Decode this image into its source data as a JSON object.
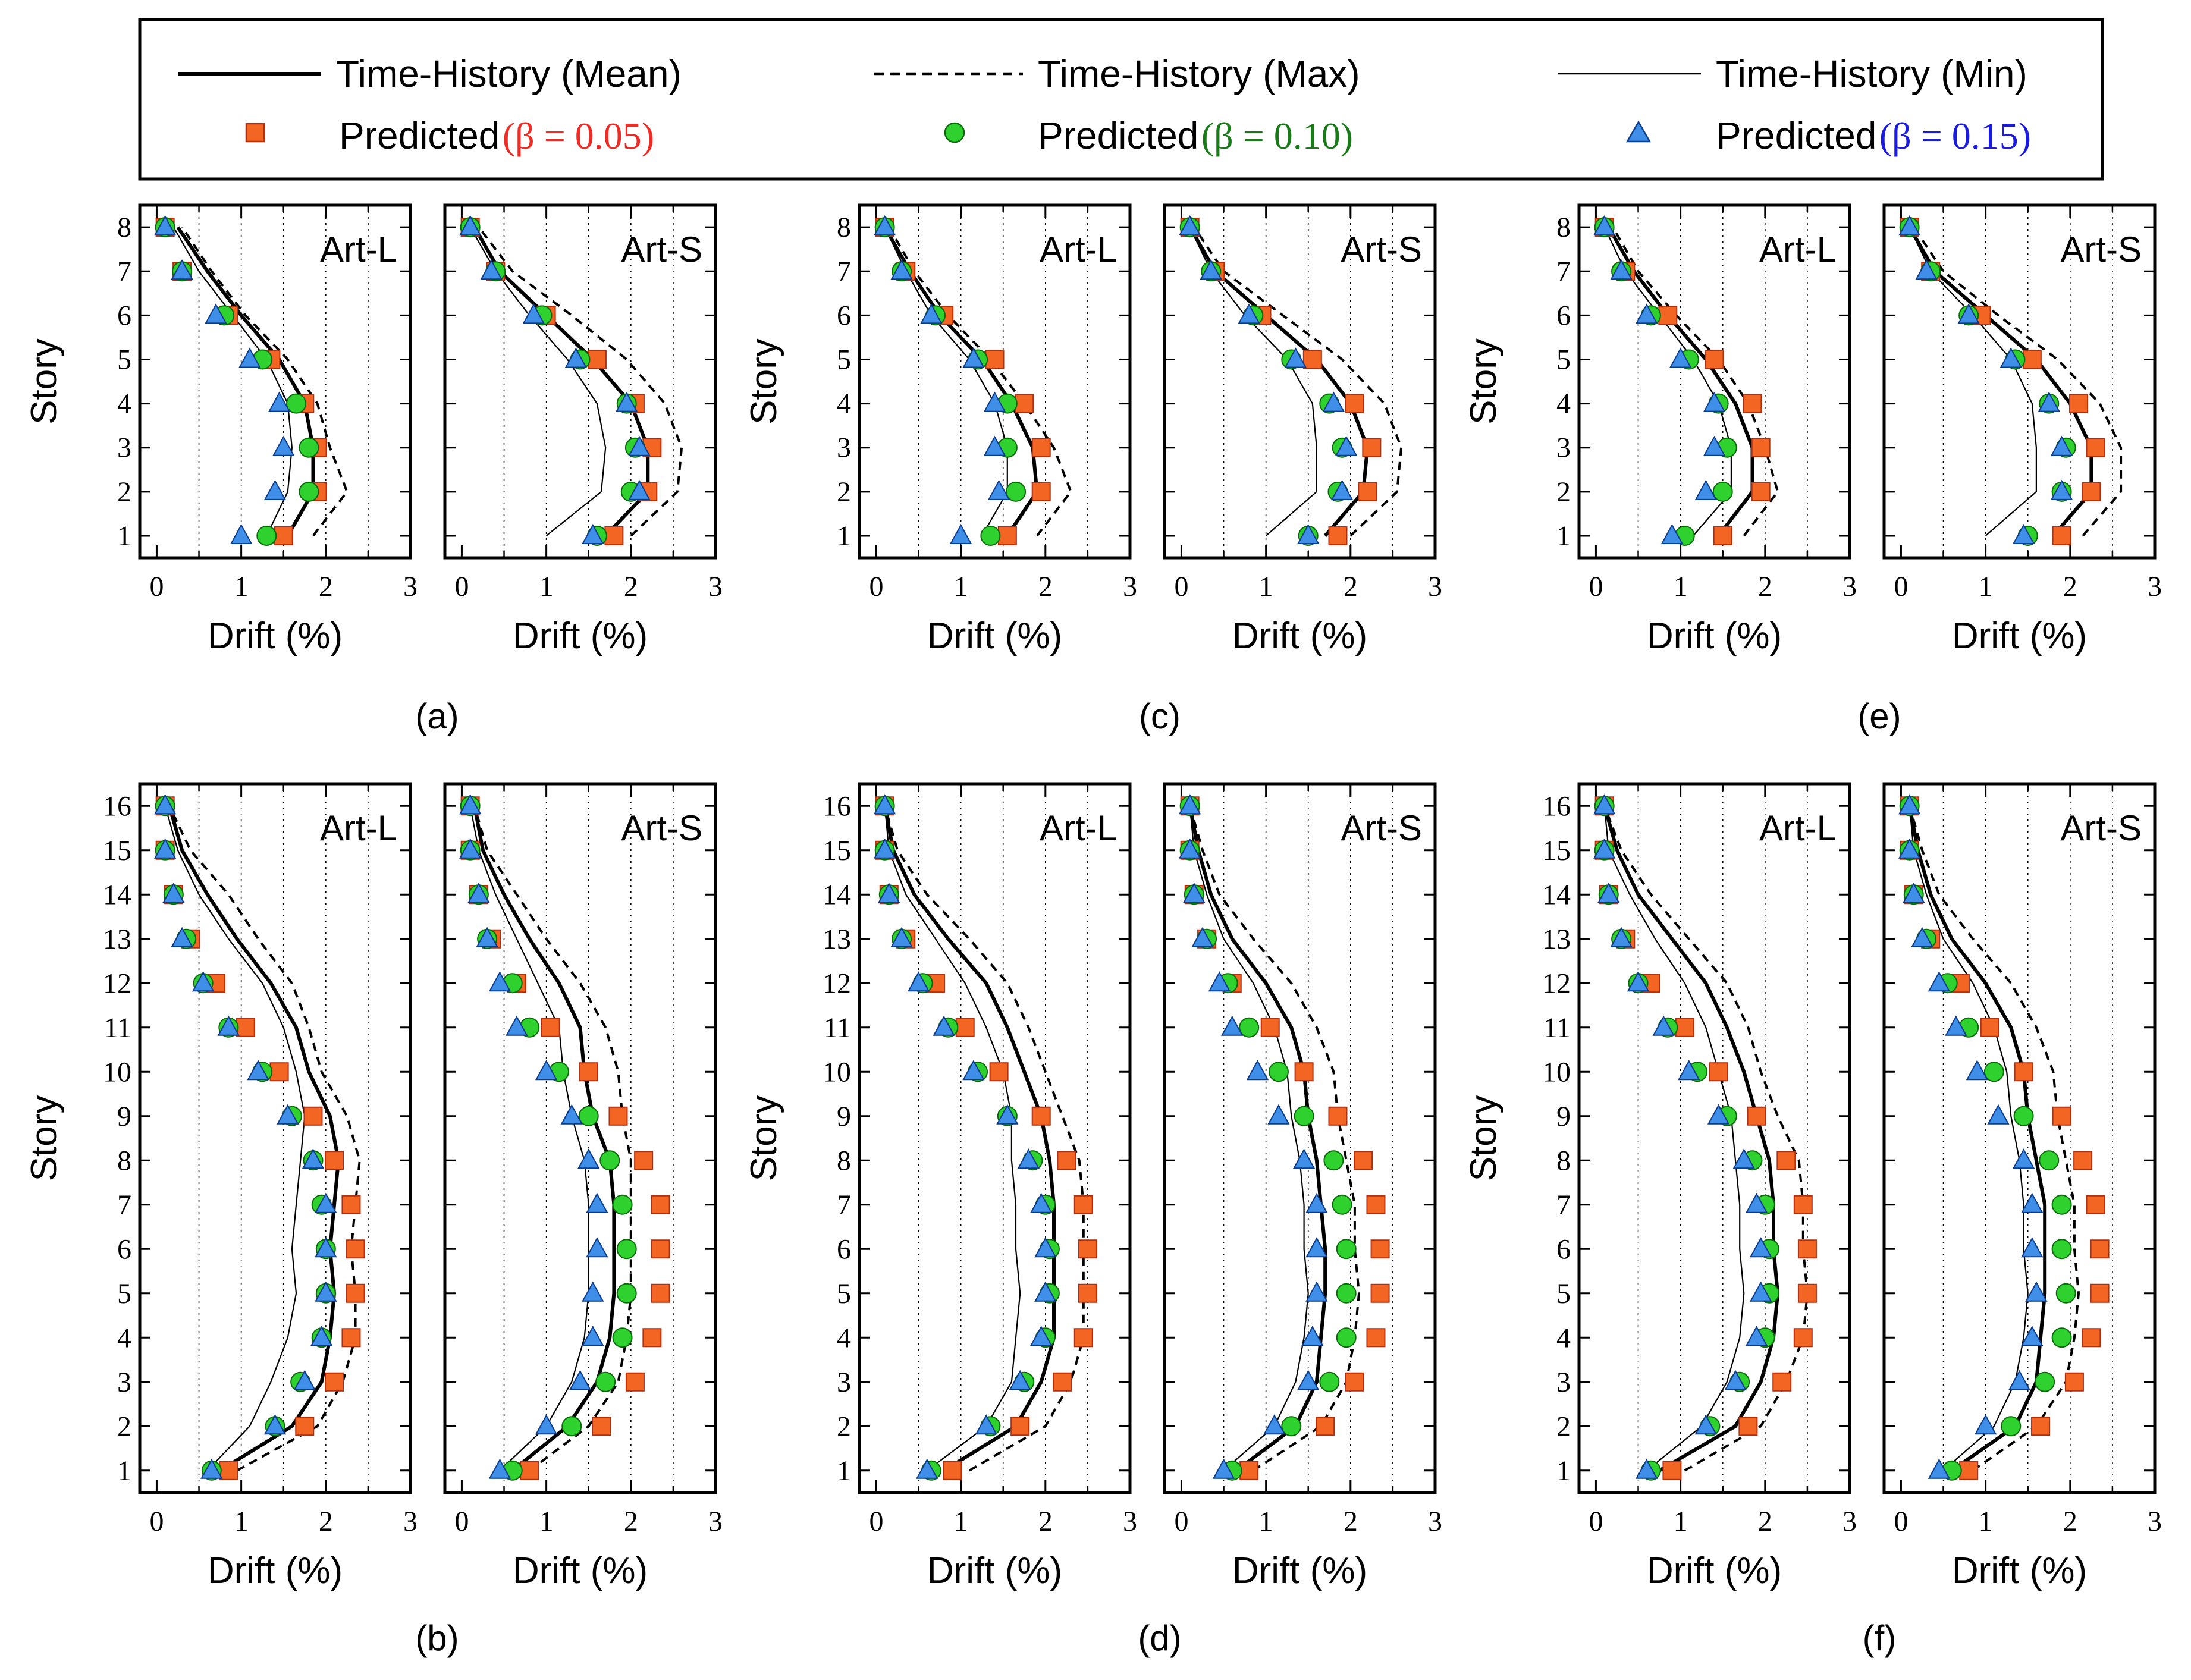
{
  "legend": {
    "mean": "Time-History (Mean)",
    "max": "Time-History (Max)",
    "min": "Time-History (Min)",
    "p05_word": "Predicted",
    "p05_beta": "(β = 0.05)",
    "p10_word": "Predicted",
    "p10_beta": "(β = 0.10)",
    "p15_word": "Predicted",
    "p15_beta": "(β = 0.15)"
  },
  "colors": {
    "b05": "#f26522",
    "b05_edge": "#b03010",
    "b10": "#2fd12f",
    "b10_edge": "#0a6a0a",
    "b15": "#3f8fe8",
    "b15_edge": "#0b3c8a",
    "lgreen": "#1a7a1a",
    "lred": "#ee2b24",
    "lblue": "#1b1bdc"
  },
  "axis_labels": {
    "x": "Drift (%)",
    "y": "Story"
  },
  "chart_data": [
    {
      "id": "a-L",
      "type": "line",
      "group": "(a)",
      "title": "Art-L",
      "stories": 8,
      "xlim": [
        0,
        3
      ],
      "xticks": [
        0,
        1,
        2,
        3
      ],
      "mean": [
        1.55,
        1.85,
        1.85,
        1.75,
        1.45,
        1.0,
        0.6,
        0.25
      ],
      "max": [
        1.85,
        2.25,
        2.05,
        1.9,
        1.55,
        1.05,
        0.65,
        0.3
      ],
      "min": [
        1.3,
        1.55,
        1.6,
        1.55,
        1.3,
        0.9,
        0.5,
        0.2
      ],
      "b05": [
        1.5,
        1.9,
        1.9,
        1.75,
        1.35,
        0.85,
        0.3,
        0.1
      ],
      "b10": [
        1.3,
        1.8,
        1.8,
        1.65,
        1.25,
        0.8,
        0.3,
        0.1
      ],
      "b15": [
        1.0,
        1.4,
        1.5,
        1.45,
        1.1,
        0.7,
        0.3,
        0.1
      ]
    },
    {
      "id": "a-S",
      "type": "line",
      "group": "(a)",
      "title": "Art-S",
      "stories": 8,
      "xlim": [
        0,
        3
      ],
      "xticks": [
        0,
        1,
        2,
        3
      ],
      "mean": [
        1.7,
        2.2,
        2.2,
        2.0,
        1.55,
        1.0,
        0.45,
        0.15
      ],
      "max": [
        2.0,
        2.55,
        2.6,
        2.4,
        1.95,
        1.3,
        0.6,
        0.2
      ],
      "min": [
        1.0,
        1.65,
        1.7,
        1.6,
        1.25,
        0.8,
        0.4,
        0.1
      ],
      "b05": [
        1.8,
        2.2,
        2.25,
        2.05,
        1.6,
        1.0,
        0.4,
        0.1
      ],
      "b10": [
        1.6,
        2.0,
        2.05,
        1.95,
        1.4,
        0.95,
        0.4,
        0.1
      ],
      "b15": [
        1.55,
        2.1,
        2.1,
        1.95,
        1.35,
        0.85,
        0.35,
        0.1
      ]
    },
    {
      "id": "c-L",
      "type": "line",
      "group": "(c)",
      "title": "Art-L",
      "stories": 8,
      "xlim": [
        0,
        3
      ],
      "xticks": [
        0,
        1,
        2,
        3
      ],
      "mean": [
        1.55,
        1.9,
        1.85,
        1.6,
        1.25,
        0.75,
        0.4,
        0.1
      ],
      "max": [
        1.9,
        2.3,
        2.1,
        1.75,
        1.35,
        0.85,
        0.45,
        0.15
      ],
      "min": [
        1.25,
        1.55,
        1.55,
        1.4,
        1.1,
        0.65,
        0.35,
        0.1
      ],
      "b05": [
        1.55,
        1.95,
        1.95,
        1.75,
        1.4,
        0.8,
        0.35,
        0.1
      ],
      "b10": [
        1.35,
        1.65,
        1.55,
        1.55,
        1.2,
        0.7,
        0.3,
        0.1
      ],
      "b15": [
        1.0,
        1.45,
        1.4,
        1.4,
        1.15,
        0.65,
        0.3,
        0.1
      ]
    },
    {
      "id": "c-S",
      "type": "line",
      "group": "(c)",
      "title": "Art-S",
      "stories": 8,
      "xlim": [
        0,
        3
      ],
      "xticks": [
        0,
        1,
        2,
        3
      ],
      "mean": [
        1.7,
        2.15,
        2.2,
        2.0,
        1.6,
        1.0,
        0.4,
        0.1
      ],
      "max": [
        2.0,
        2.55,
        2.6,
        2.4,
        1.9,
        1.2,
        0.5,
        0.15
      ],
      "min": [
        1.0,
        1.6,
        1.6,
        1.55,
        1.25,
        0.75,
        0.35,
        0.1
      ],
      "b05": [
        1.85,
        2.2,
        2.25,
        2.05,
        1.55,
        0.95,
        0.4,
        0.1
      ],
      "b10": [
        1.5,
        1.85,
        1.9,
        1.75,
        1.3,
        0.85,
        0.35,
        0.1
      ],
      "b15": [
        1.5,
        1.9,
        1.95,
        1.8,
        1.35,
        0.8,
        0.35,
        0.1
      ]
    },
    {
      "id": "e-L",
      "type": "line",
      "group": "(e)",
      "title": "Art-L",
      "stories": 8,
      "xlim": [
        0,
        3
      ],
      "xticks": [
        0,
        1,
        2,
        3
      ],
      "mean": [
        1.45,
        1.85,
        1.85,
        1.65,
        1.3,
        0.85,
        0.45,
        0.15
      ],
      "max": [
        1.75,
        2.15,
        2.0,
        1.8,
        1.45,
        0.95,
        0.5,
        0.2
      ],
      "min": [
        1.15,
        1.6,
        1.6,
        1.45,
        1.15,
        0.75,
        0.35,
        0.1
      ],
      "b05": [
        1.5,
        1.95,
        1.95,
        1.85,
        1.4,
        0.85,
        0.35,
        0.1
      ],
      "b10": [
        1.05,
        1.5,
        1.55,
        1.45,
        1.1,
        0.65,
        0.3,
        0.1
      ],
      "b15": [
        0.9,
        1.3,
        1.4,
        1.4,
        1.0,
        0.6,
        0.3,
        0.1
      ]
    },
    {
      "id": "e-S",
      "type": "line",
      "group": "(e)",
      "title": "Art-S",
      "stories": 8,
      "xlim": [
        0,
        3
      ],
      "xticks": [
        0,
        1,
        2,
        3
      ],
      "mean": [
        1.8,
        2.25,
        2.25,
        2.0,
        1.6,
        1.0,
        0.4,
        0.1
      ],
      "max": [
        2.15,
        2.6,
        2.6,
        2.35,
        1.85,
        1.15,
        0.5,
        0.15
      ],
      "min": [
        1.0,
        1.6,
        1.6,
        1.55,
        1.3,
        0.85,
        0.35,
        0.1
      ],
      "b05": [
        1.9,
        2.25,
        2.3,
        2.1,
        1.55,
        0.95,
        0.35,
        0.1
      ],
      "b10": [
        1.5,
        1.9,
        1.95,
        1.75,
        1.35,
        0.8,
        0.35,
        0.1
      ],
      "b15": [
        1.45,
        1.9,
        1.9,
        1.75,
        1.3,
        0.8,
        0.3,
        0.1
      ]
    },
    {
      "id": "b-L",
      "type": "line",
      "group": "(b)",
      "title": "Art-L",
      "stories": 16,
      "xlim": [
        0,
        3
      ],
      "xticks": [
        0,
        1,
        2,
        3
      ],
      "mean": [
        0.75,
        1.6,
        1.95,
        2.05,
        2.1,
        2.05,
        2.1,
        2.15,
        2.05,
        1.8,
        1.65,
        1.35,
        0.95,
        0.6,
        0.3,
        0.15
      ],
      "max": [
        0.95,
        1.9,
        2.2,
        2.35,
        2.35,
        2.3,
        2.35,
        2.4,
        2.25,
        1.95,
        1.8,
        1.6,
        1.2,
        0.85,
        0.4,
        0.15
      ],
      "min": [
        0.6,
        1.1,
        1.35,
        1.55,
        1.65,
        1.6,
        1.65,
        1.7,
        1.75,
        1.65,
        1.5,
        1.25,
        0.85,
        0.5,
        0.25,
        0.1
      ],
      "b05": [
        0.85,
        1.75,
        2.1,
        2.3,
        2.35,
        2.35,
        2.3,
        2.1,
        1.85,
        1.45,
        1.05,
        0.7,
        0.4,
        0.2,
        0.1,
        0.1
      ],
      "b10": [
        0.65,
        1.4,
        1.7,
        1.95,
        2.0,
        2.0,
        1.95,
        1.85,
        1.6,
        1.25,
        0.85,
        0.55,
        0.35,
        0.2,
        0.1,
        0.1
      ],
      "b15": [
        0.65,
        1.4,
        1.75,
        1.95,
        2.0,
        2.0,
        2.0,
        1.85,
        1.55,
        1.2,
        0.85,
        0.55,
        0.3,
        0.2,
        0.1,
        0.1
      ]
    },
    {
      "id": "b-S",
      "type": "line",
      "group": "(b)",
      "title": "Art-S",
      "stories": 16,
      "xlim": [
        0,
        3
      ],
      "xticks": [
        0,
        1,
        2,
        3
      ],
      "mean": [
        0.6,
        1.25,
        1.6,
        1.75,
        1.8,
        1.8,
        1.8,
        1.75,
        1.55,
        1.45,
        1.4,
        1.15,
        0.8,
        0.5,
        0.25,
        0.15
      ],
      "max": [
        0.8,
        1.5,
        1.85,
        1.95,
        2.0,
        2.0,
        2.0,
        2.0,
        1.9,
        1.85,
        1.7,
        1.4,
        1.0,
        0.65,
        0.3,
        0.15
      ],
      "min": [
        0.45,
        1.0,
        1.3,
        1.45,
        1.5,
        1.5,
        1.5,
        1.45,
        1.3,
        1.2,
        1.15,
        0.9,
        0.65,
        0.4,
        0.2,
        0.1
      ],
      "b05": [
        0.8,
        1.65,
        2.05,
        2.25,
        2.35,
        2.35,
        2.35,
        2.15,
        1.85,
        1.5,
        1.05,
        0.65,
        0.35,
        0.2,
        0.1,
        0.1
      ],
      "b10": [
        0.6,
        1.3,
        1.7,
        1.9,
        1.95,
        1.95,
        1.9,
        1.75,
        1.5,
        1.15,
        0.8,
        0.6,
        0.3,
        0.2,
        0.1,
        0.1
      ],
      "b15": [
        0.45,
        1.0,
        1.4,
        1.55,
        1.55,
        1.6,
        1.6,
        1.5,
        1.3,
        1.0,
        0.65,
        0.45,
        0.3,
        0.2,
        0.1,
        0.1
      ]
    },
    {
      "id": "d-L",
      "type": "line",
      "group": "(d)",
      "title": "Art-L",
      "stories": 16,
      "xlim": [
        0,
        3
      ],
      "xticks": [
        0,
        1,
        2,
        3
      ],
      "mean": [
        0.8,
        1.65,
        1.95,
        2.1,
        2.1,
        2.1,
        2.1,
        2.05,
        1.95,
        1.75,
        1.55,
        1.3,
        0.85,
        0.45,
        0.2,
        0.1
      ],
      "max": [
        1.1,
        2.0,
        2.3,
        2.45,
        2.45,
        2.45,
        2.45,
        2.4,
        2.2,
        2.0,
        1.8,
        1.55,
        1.1,
        0.6,
        0.25,
        0.1
      ],
      "min": [
        0.6,
        1.3,
        1.6,
        1.65,
        1.7,
        1.65,
        1.65,
        1.6,
        1.6,
        1.5,
        1.3,
        1.05,
        0.7,
        0.35,
        0.15,
        0.1
      ],
      "b05": [
        0.9,
        1.7,
        2.2,
        2.45,
        2.5,
        2.5,
        2.45,
        2.25,
        1.95,
        1.45,
        1.05,
        0.7,
        0.35,
        0.15,
        0.1,
        0.1
      ],
      "b10": [
        0.65,
        1.35,
        1.75,
        2.0,
        2.05,
        2.05,
        2.0,
        1.85,
        1.55,
        1.2,
        0.85,
        0.55,
        0.3,
        0.15,
        0.1,
        0.1
      ],
      "b15": [
        0.6,
        1.3,
        1.7,
        1.95,
        2.0,
        2.0,
        1.95,
        1.8,
        1.55,
        1.15,
        0.8,
        0.5,
        0.3,
        0.15,
        0.1,
        0.1
      ]
    },
    {
      "id": "d-S",
      "type": "line",
      "group": "(d)",
      "title": "Art-S",
      "stories": 16,
      "xlim": [
        0,
        3
      ],
      "xticks": [
        0,
        1,
        2,
        3
      ],
      "mean": [
        0.65,
        1.35,
        1.6,
        1.65,
        1.7,
        1.7,
        1.65,
        1.6,
        1.5,
        1.45,
        1.3,
        1.0,
        0.6,
        0.35,
        0.2,
        0.1
      ],
      "max": [
        0.85,
        1.65,
        1.95,
        2.05,
        2.1,
        2.05,
        2.05,
        1.95,
        1.85,
        1.8,
        1.6,
        1.3,
        0.85,
        0.45,
        0.25,
        0.1
      ],
      "min": [
        0.5,
        1.1,
        1.35,
        1.45,
        1.5,
        1.45,
        1.45,
        1.4,
        1.3,
        1.25,
        1.1,
        0.85,
        0.5,
        0.3,
        0.15,
        0.1
      ],
      "b05": [
        0.8,
        1.7,
        2.05,
        2.3,
        2.35,
        2.35,
        2.3,
        2.15,
        1.85,
        1.45,
        1.05,
        0.6,
        0.3,
        0.15,
        0.1,
        0.1
      ],
      "b10": [
        0.6,
        1.3,
        1.75,
        1.95,
        1.95,
        1.95,
        1.9,
        1.8,
        1.45,
        1.15,
        0.8,
        0.55,
        0.3,
        0.15,
        0.1,
        0.1
      ],
      "b15": [
        0.5,
        1.1,
        1.5,
        1.55,
        1.6,
        1.6,
        1.6,
        1.45,
        1.15,
        0.9,
        0.6,
        0.45,
        0.25,
        0.15,
        0.1,
        0.1
      ]
    },
    {
      "id": "f-L",
      "type": "line",
      "group": "(f)",
      "title": "Art-L",
      "stories": 16,
      "xlim": [
        0,
        3
      ],
      "xticks": [
        0,
        1,
        2,
        3
      ],
      "mean": [
        0.75,
        1.65,
        1.95,
        2.1,
        2.15,
        2.1,
        2.1,
        2.05,
        1.9,
        1.75,
        1.55,
        1.3,
        0.9,
        0.5,
        0.25,
        0.1
      ],
      "max": [
        1.05,
        1.95,
        2.25,
        2.45,
        2.5,
        2.45,
        2.45,
        2.4,
        2.15,
        1.95,
        1.8,
        1.55,
        1.1,
        0.65,
        0.3,
        0.1
      ],
      "min": [
        0.6,
        1.25,
        1.55,
        1.7,
        1.75,
        1.7,
        1.7,
        1.65,
        1.6,
        1.45,
        1.3,
        1.05,
        0.7,
        0.4,
        0.15,
        0.1
      ],
      "b05": [
        0.9,
        1.8,
        2.2,
        2.45,
        2.5,
        2.5,
        2.45,
        2.25,
        1.9,
        1.45,
        1.05,
        0.65,
        0.35,
        0.15,
        0.1,
        0.1
      ],
      "b10": [
        0.65,
        1.35,
        1.7,
        2.0,
        2.05,
        2.05,
        2.0,
        1.85,
        1.55,
        1.2,
        0.85,
        0.5,
        0.3,
        0.15,
        0.1,
        0.1
      ],
      "b15": [
        0.6,
        1.3,
        1.65,
        1.9,
        1.95,
        1.95,
        1.9,
        1.75,
        1.45,
        1.1,
        0.8,
        0.5,
        0.3,
        0.15,
        0.1,
        0.1
      ]
    },
    {
      "id": "f-S",
      "type": "line",
      "group": "(f)",
      "title": "Art-S",
      "stories": 16,
      "xlim": [
        0,
        3
      ],
      "xticks": [
        0,
        1,
        2,
        3
      ],
      "mean": [
        0.6,
        1.35,
        1.6,
        1.65,
        1.7,
        1.7,
        1.7,
        1.6,
        1.5,
        1.45,
        1.3,
        1.0,
        0.6,
        0.35,
        0.2,
        0.1
      ],
      "max": [
        0.85,
        1.6,
        1.95,
        2.05,
        2.1,
        2.05,
        2.05,
        1.95,
        1.85,
        1.8,
        1.6,
        1.3,
        0.85,
        0.45,
        0.25,
        0.1
      ],
      "min": [
        0.5,
        1.1,
        1.35,
        1.45,
        1.5,
        1.45,
        1.45,
        1.4,
        1.3,
        1.25,
        1.1,
        0.85,
        0.5,
        0.3,
        0.15,
        0.1
      ],
      "b05": [
        0.8,
        1.65,
        2.05,
        2.25,
        2.35,
        2.35,
        2.3,
        2.15,
        1.9,
        1.45,
        1.05,
        0.7,
        0.35,
        0.15,
        0.1,
        0.1
      ],
      "b10": [
        0.6,
        1.3,
        1.7,
        1.9,
        1.95,
        1.9,
        1.9,
        1.75,
        1.45,
        1.1,
        0.8,
        0.55,
        0.3,
        0.15,
        0.1,
        0.1
      ],
      "b15": [
        0.45,
        1.0,
        1.4,
        1.55,
        1.6,
        1.55,
        1.55,
        1.45,
        1.15,
        0.9,
        0.65,
        0.45,
        0.25,
        0.15,
        0.1,
        0.1
      ]
    }
  ]
}
